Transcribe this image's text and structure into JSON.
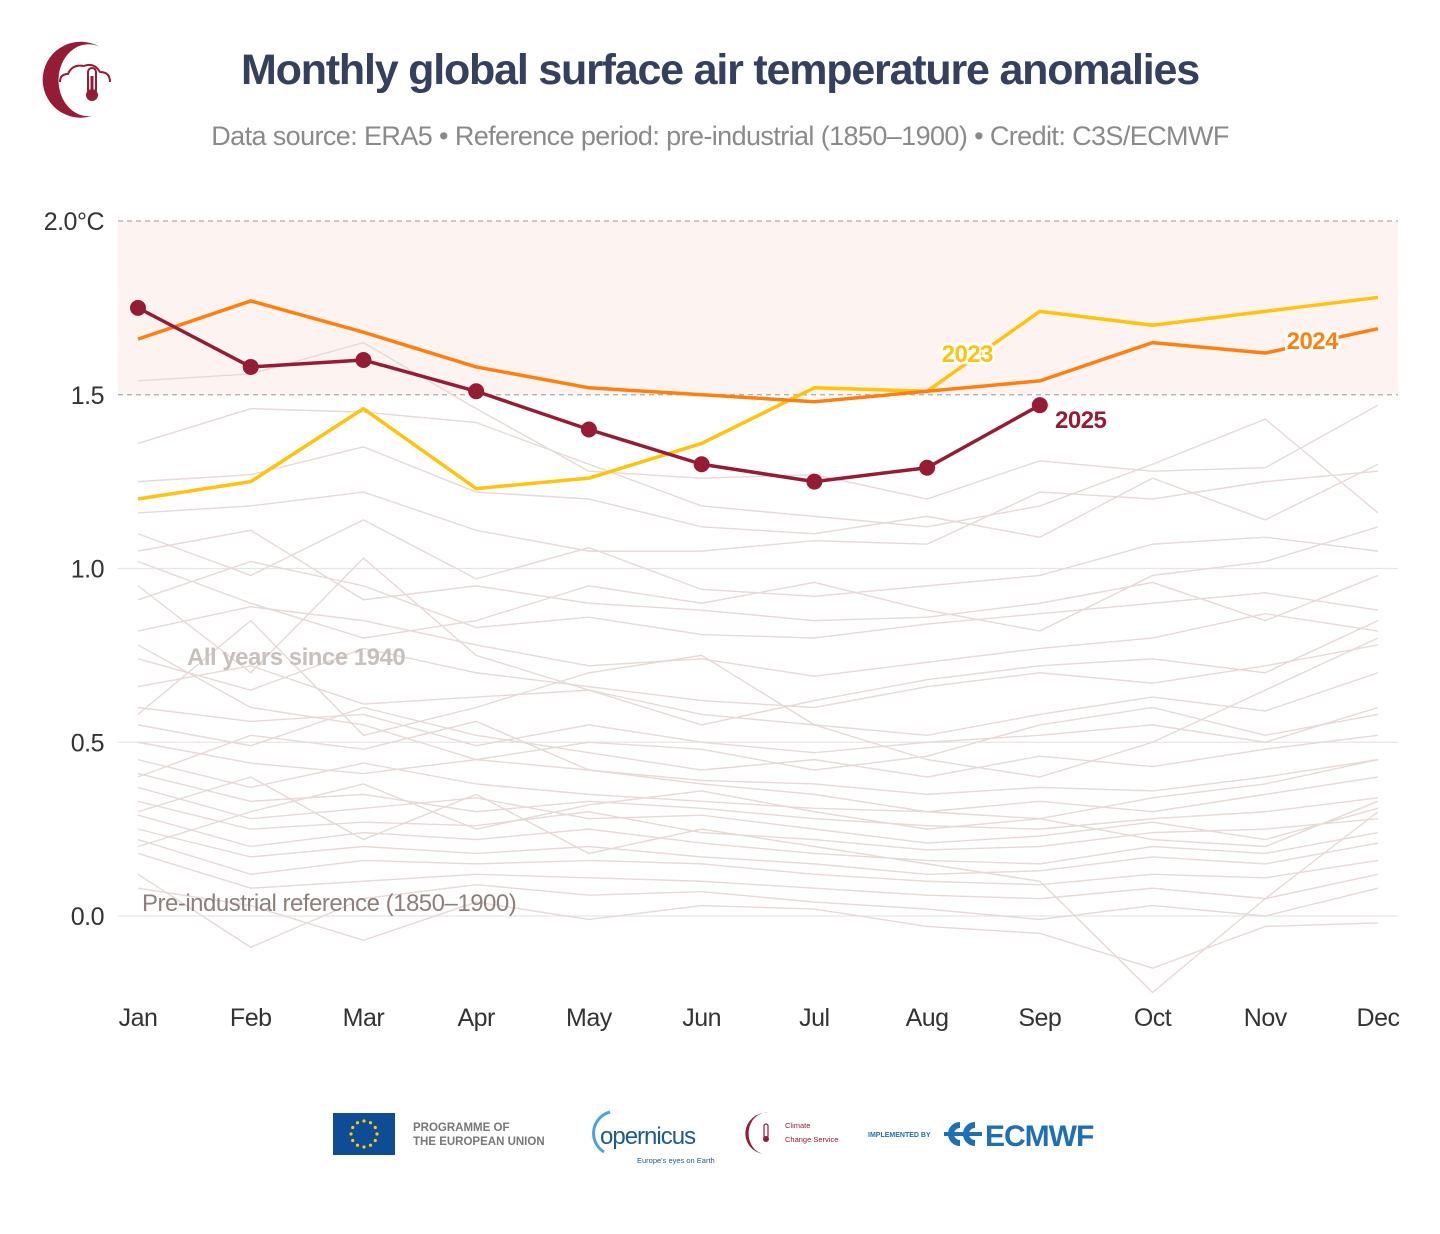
{
  "header": {
    "title": "Monthly global surface air temperature anomalies",
    "subtitle": "Data source: ERA5 • Reference period: pre-industrial (1850–1900) • Credit: C3S/ECMWF",
    "logo": "c3s-cloud-thermometer-logo"
  },
  "chart_data": {
    "type": "line",
    "title": "Monthly global surface air temperature anomalies",
    "xlabel": "",
    "ylabel": "",
    "categories": [
      "Jan",
      "Feb",
      "Mar",
      "Apr",
      "May",
      "Jun",
      "Jul",
      "Aug",
      "Sep",
      "Oct",
      "Nov",
      "Dec"
    ],
    "ylim": [
      -0.2,
      2.0
    ],
    "yticks": [
      {
        "value": 2.0,
        "label": "2.0°C"
      },
      {
        "value": 1.5,
        "label": "1.5"
      },
      {
        "value": 1.0,
        "label": "1.0"
      },
      {
        "value": 0.5,
        "label": "0.5"
      },
      {
        "value": 0.0,
        "label": "0.0"
      }
    ],
    "grid": true,
    "shaded_band": {
      "from": 1.5,
      "to": 2.0,
      "color": "#fdf4f2"
    },
    "dashed_lines": [
      1.5,
      2.0
    ],
    "annotations": {
      "background": "All years since 1940",
      "reference": "Pre-industrial reference (1850–1900)"
    },
    "series": [
      {
        "name": "2025",
        "color": "#951c35",
        "markers": true,
        "values": [
          1.75,
          1.58,
          1.6,
          1.51,
          1.4,
          1.3,
          1.25,
          1.29,
          1.47,
          null,
          null,
          null
        ]
      },
      {
        "name": "2024",
        "color": "#ff7f0e",
        "values": [
          1.66,
          1.77,
          1.68,
          1.58,
          1.52,
          1.5,
          1.48,
          1.51,
          1.54,
          1.65,
          1.62,
          1.69
        ]
      },
      {
        "name": "2023",
        "color": "#ffc20e",
        "values": [
          1.2,
          1.25,
          1.46,
          1.23,
          1.26,
          1.36,
          1.52,
          1.51,
          1.74,
          1.7,
          1.74,
          1.78
        ]
      }
    ],
    "background_color": "#e6d9d6",
    "background_series": [
      [
        1.54,
        1.56,
        1.65,
        1.46,
        1.28,
        1.26,
        1.27,
        1.2,
        1.31,
        1.28,
        1.29,
        1.47
      ],
      [
        1.36,
        1.46,
        1.45,
        1.42,
        1.3,
        1.18,
        1.15,
        1.12,
        1.18,
        1.3,
        1.43,
        1.16
      ],
      [
        1.25,
        1.27,
        1.35,
        1.22,
        1.2,
        1.12,
        1.1,
        1.15,
        1.09,
        1.26,
        1.14,
        1.3
      ],
      [
        1.16,
        1.18,
        1.22,
        1.11,
        1.05,
        1.05,
        1.08,
        1.07,
        1.22,
        1.2,
        1.25,
        1.28
      ],
      [
        1.1,
        0.98,
        1.14,
        0.97,
        1.06,
        0.94,
        0.92,
        0.95,
        0.98,
        1.07,
        1.09,
        1.05
      ],
      [
        1.05,
        1.11,
        0.91,
        0.95,
        0.9,
        0.88,
        0.85,
        0.86,
        0.9,
        0.96,
        0.85,
        0.98
      ],
      [
        0.91,
        1.02,
        0.95,
        0.83,
        0.86,
        0.81,
        0.8,
        0.84,
        0.87,
        0.9,
        0.93,
        0.88
      ],
      [
        0.82,
        0.89,
        0.85,
        0.78,
        0.72,
        0.74,
        0.69,
        0.73,
        0.77,
        0.8,
        0.87,
        0.82
      ],
      [
        0.74,
        0.65,
        0.77,
        0.7,
        0.66,
        0.62,
        0.6,
        0.66,
        0.7,
        0.67,
        0.72,
        0.78
      ],
      [
        0.66,
        0.72,
        0.61,
        0.63,
        0.65,
        0.58,
        0.55,
        0.52,
        0.58,
        0.63,
        0.59,
        0.7
      ],
      [
        0.6,
        0.56,
        0.58,
        0.49,
        0.55,
        0.5,
        0.47,
        0.5,
        0.52,
        0.55,
        0.5,
        0.6
      ],
      [
        0.55,
        0.49,
        0.6,
        0.52,
        0.47,
        0.42,
        0.45,
        0.4,
        0.46,
        0.43,
        0.48,
        0.52
      ],
      [
        0.5,
        0.44,
        0.41,
        0.45,
        0.42,
        0.39,
        0.38,
        0.35,
        0.37,
        0.36,
        0.4,
        0.45
      ],
      [
        0.45,
        0.37,
        0.44,
        0.38,
        0.35,
        0.33,
        0.31,
        0.3,
        0.33,
        0.3,
        0.35,
        0.4
      ],
      [
        0.41,
        0.33,
        0.35,
        0.3,
        0.33,
        0.31,
        0.28,
        0.26,
        0.25,
        0.28,
        0.3,
        0.34
      ],
      [
        0.37,
        0.28,
        0.31,
        0.34,
        0.28,
        0.29,
        0.25,
        0.21,
        0.23,
        0.27,
        0.22,
        0.31
      ],
      [
        0.33,
        0.25,
        0.27,
        0.26,
        0.3,
        0.24,
        0.22,
        0.19,
        0.2,
        0.24,
        0.25,
        0.28
      ],
      [
        0.29,
        0.2,
        0.24,
        0.22,
        0.25,
        0.21,
        0.18,
        0.16,
        0.15,
        0.2,
        0.18,
        0.24
      ],
      [
        0.25,
        0.17,
        0.2,
        0.18,
        0.2,
        0.17,
        0.15,
        0.12,
        0.13,
        0.17,
        0.15,
        0.21
      ],
      [
        0.22,
        0.12,
        0.16,
        0.15,
        0.16,
        0.15,
        0.12,
        0.1,
        0.09,
        0.12,
        0.11,
        0.16
      ],
      [
        0.18,
        0.08,
        0.1,
        0.12,
        0.11,
        0.1,
        0.08,
        0.06,
        0.05,
        0.08,
        0.05,
        0.12
      ],
      [
        0.12,
        -0.09,
        0.05,
        0.09,
        0.06,
        0.07,
        0.04,
        0.02,
        -0.01,
        0.03,
        0.0,
        0.08
      ],
      [
        0.08,
        0.03,
        -0.07,
        0.04,
        -0.01,
        0.03,
        0.02,
        -0.03,
        -0.05,
        -0.15,
        -0.03,
        -0.02
      ],
      [
        0.3,
        0.4,
        0.22,
        0.35,
        0.18,
        0.25,
        0.2,
        0.15,
        0.1,
        -0.22,
        0.05,
        0.3
      ],
      [
        0.58,
        0.85,
        0.52,
        0.6,
        0.7,
        0.75,
        0.55,
        0.45,
        0.4,
        0.5,
        0.65,
        0.8
      ],
      [
        0.95,
        0.7,
        1.03,
        0.75,
        0.65,
        0.55,
        0.62,
        0.68,
        0.72,
        0.74,
        0.7,
        0.85
      ],
      [
        1.02,
        0.9,
        0.8,
        0.85,
        0.95,
        0.9,
        0.96,
        0.88,
        0.82,
        0.98,
        1.02,
        1.12
      ],
      [
        0.78,
        0.6,
        0.55,
        0.45,
        0.5,
        0.48,
        0.42,
        0.46,
        0.55,
        0.6,
        0.52,
        0.58
      ],
      [
        0.4,
        0.52,
        0.48,
        0.56,
        0.42,
        0.38,
        0.35,
        0.3,
        0.28,
        0.34,
        0.38,
        0.45
      ],
      [
        0.2,
        0.3,
        0.38,
        0.25,
        0.32,
        0.36,
        0.3,
        0.25,
        0.28,
        0.22,
        0.2,
        0.33
      ]
    ]
  },
  "footer": {
    "eu_label_line1": "PROGRAMME OF",
    "eu_label_line2": "THE EUROPEAN UNION",
    "copernicus": "opernicus",
    "copernicus_tagline": "Europe's eyes on Earth",
    "c3s_line1": "Climate",
    "c3s_line2": "Change Service",
    "implemented_by": "IMPLEMENTED BY",
    "ecmwf": "ECMWF"
  }
}
